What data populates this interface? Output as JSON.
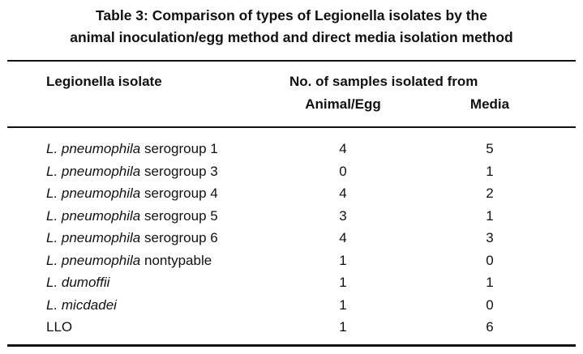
{
  "title": {
    "line1": "Table 3: Comparison of types of Legionella isolates by the",
    "line2": "animal inoculation/egg method and direct media isolation method"
  },
  "headers": {
    "isolate": "Legionella isolate",
    "group": "No. of samples isolated from",
    "animal_egg": "Animal/Egg",
    "media": "Media"
  },
  "rows": [
    {
      "species": "L. pneumophila",
      "suffix": " serogroup 1",
      "animal_egg": "4",
      "media": "5"
    },
    {
      "species": "L. pneumophila",
      "suffix": " serogroup 3",
      "animal_egg": "0",
      "media": "1"
    },
    {
      "species": "L. pneumophila",
      "suffix": " serogroup 4",
      "animal_egg": "4",
      "media": "2"
    },
    {
      "species": "L. pneumophila",
      "suffix": " serogroup 5",
      "animal_egg": "3",
      "media": "1"
    },
    {
      "species": "L. pneumophila",
      "suffix": " serogroup 6",
      "animal_egg": "4",
      "media": "3"
    },
    {
      "species": "L. pneumophila",
      "suffix": " nontypable",
      "animal_egg": "1",
      "media": "0"
    },
    {
      "species": "L. dumoffii",
      "suffix": "",
      "animal_egg": "1",
      "media": "1"
    },
    {
      "species": "L. micdadei",
      "suffix": "",
      "animal_egg": "1",
      "media": "0"
    },
    {
      "species": "",
      "suffix": "LLO",
      "animal_egg": "1",
      "media": "6"
    }
  ]
}
